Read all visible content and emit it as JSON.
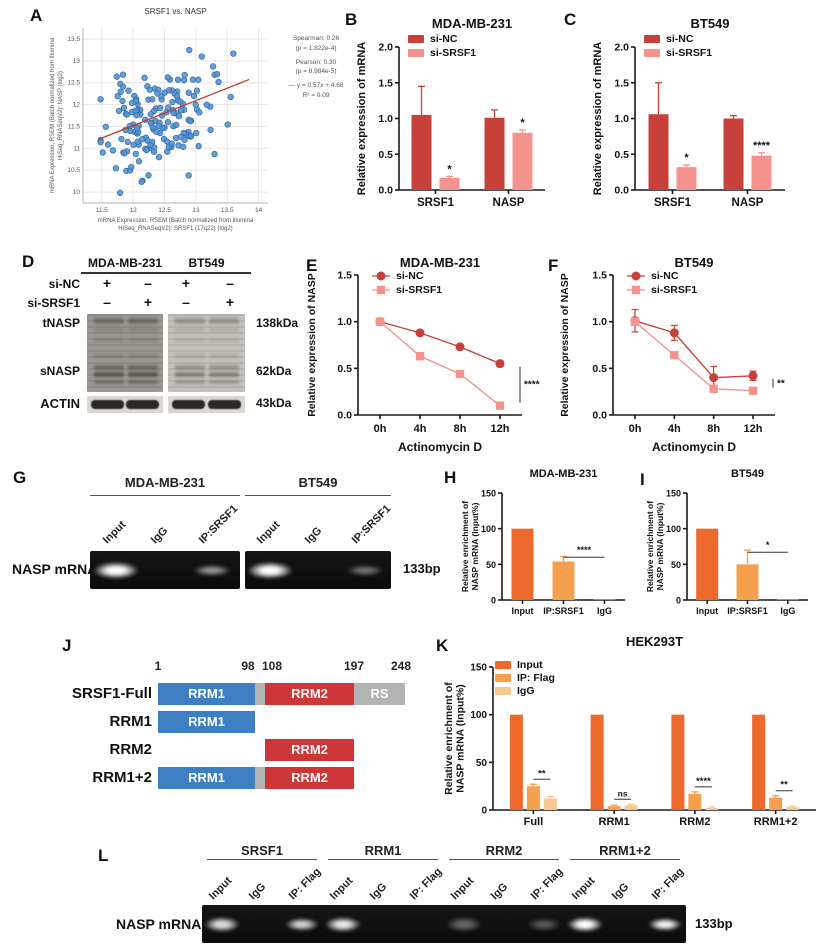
{
  "colors": {
    "si_nc": "#c8403a",
    "si_srsf1": "#f4938d",
    "input_orange": "#ee6a2c",
    "flag_orange": "#f5a04f",
    "igg_orange": "#f6c88f",
    "scatter_point": "#5593d2",
    "regression": "#c0392b",
    "domain_blue": "#3e7ec2",
    "domain_red": "#cc3636",
    "domain_gray": "#b3b3b3"
  },
  "panel_labels": {
    "A": "A",
    "B": "B",
    "C": "C",
    "D": "D",
    "E": "E",
    "F": "F",
    "G": "G",
    "H": "H",
    "I": "I",
    "J": "J",
    "K": "K",
    "L": "L"
  },
  "chart_data": [
    {
      "panel": "A",
      "type": "scatter",
      "title": "SRSF1 vs. NASP",
      "xlabel_lines": [
        "mRNA Expression, RSEM (Batch normalized from Illumina",
        "HiSeq_RNASeqV2): SRSF1 (17q22) (log2)"
      ],
      "ylabel_lines": [
        "mRNA Expression, RSEM (Batch normalized from Illumina",
        "HiSeq_RNASeqV2): NASP (log2)"
      ],
      "xlim": [
        11.2,
        14.15
      ],
      "ylim": [
        9.75,
        13.75
      ],
      "xticks": [
        11.5,
        12,
        12.5,
        13,
        13.5,
        14
      ],
      "xtick_labels": [
        "11.5",
        "12",
        "12.5",
        "13",
        "13.5",
        "14"
      ],
      "yticks": [
        10,
        10.5,
        11,
        11.5,
        12,
        12.5,
        13,
        13.5
      ],
      "ytick_labels": [
        "10",
        "10.5",
        "11",
        "11.5",
        "12",
        "12.5",
        "13",
        "13.5"
      ],
      "n_points": 165,
      "point_distribution": {
        "x_mean": 12.38,
        "x_sd": 0.42,
        "y_mean": 11.62,
        "y_sd": 0.6,
        "correlation": 0.3,
        "seed": 11
      },
      "regression": {
        "slope": 0.57,
        "intercept": 4.68,
        "x_range": [
          11.45,
          13.85
        ]
      },
      "stats_lines": [
        "Spearman: 0.26",
        "(p = 1.822e-4)",
        "Pearson: 0.30",
        "(p = 8.984e-5)",
        "—  y = 0.57x + 4.68",
        "R² = 0.09"
      ]
    },
    {
      "panel": "B",
      "type": "bar",
      "title": "MDA-MB-231",
      "ylabel": "Relative expression of mRNA",
      "ylim": [
        0,
        2.0
      ],
      "yticks": [
        0,
        0.5,
        1.0,
        1.5,
        2.0
      ],
      "ytick_labels": [
        "0.0",
        "0.5",
        "1.0",
        "1.5",
        "2.0"
      ],
      "categories": [
        "SRSF1",
        "NASP"
      ],
      "series": [
        {
          "name": "si-NC",
          "color": "#c8403a",
          "values": [
            1.05,
            1.01
          ],
          "errors": [
            0.4,
            0.11
          ]
        },
        {
          "name": "si-SRSF1",
          "color": "#f4938d",
          "values": [
            0.17,
            0.8
          ],
          "errors": [
            0.02,
            0.04
          ]
        }
      ],
      "sig_stars": [
        {
          "category": 0,
          "series": 1,
          "text": "*"
        },
        {
          "category": 1,
          "series": 1,
          "text": "*"
        }
      ]
    },
    {
      "panel": "C",
      "type": "bar",
      "title": "BT549",
      "ylabel": "Relative expression of mRNA",
      "ylim": [
        0,
        2.0
      ],
      "yticks": [
        0,
        0.5,
        1.0,
        1.5,
        2.0
      ],
      "ytick_labels": [
        "0.0",
        "0.5",
        "1.0",
        "1.5",
        "2.0"
      ],
      "categories": [
        "SRSF1",
        "NASP"
      ],
      "series": [
        {
          "name": "si-NC",
          "color": "#c8403a",
          "values": [
            1.06,
            1.0
          ],
          "errors": [
            0.44,
            0.04
          ]
        },
        {
          "name": "si-SRSF1",
          "color": "#f4938d",
          "values": [
            0.32,
            0.48
          ],
          "errors": [
            0.03,
            0.04
          ]
        }
      ],
      "sig_stars": [
        {
          "category": 0,
          "series": 1,
          "text": "*"
        },
        {
          "category": 1,
          "series": 1,
          "text": "****"
        }
      ]
    },
    {
      "panel": "E",
      "type": "line",
      "title": "MDA-MB-231",
      "ylabel": "Relative expression of NASP",
      "xlabel": "Actinomycin D",
      "x": [
        "0h",
        "4h",
        "8h",
        "12h"
      ],
      "ylim": [
        0,
        1.5
      ],
      "yticks": [
        0,
        0.5,
        1.0,
        1.5
      ],
      "ytick_labels": [
        "0.0",
        "0.5",
        "1.0",
        "1.5"
      ],
      "series": [
        {
          "name": "si-NC",
          "color": "#c8403a",
          "marker": "circle",
          "values": [
            1.0,
            0.88,
            0.73,
            0.55
          ],
          "errors": [
            0.03,
            0.02,
            0.02,
            0.03
          ]
        },
        {
          "name": "si-SRSF1",
          "color": "#f4938d",
          "marker": "square",
          "values": [
            1.0,
            0.63,
            0.44,
            0.1
          ],
          "errors": [
            0.02,
            0.02,
            0.02,
            0.02
          ]
        }
      ],
      "sig_bracket": {
        "text": "****"
      }
    },
    {
      "panel": "F",
      "type": "line",
      "title": "BT549",
      "ylabel": "Relative expression of NASP",
      "xlabel": "Actinomycin D",
      "x": [
        "0h",
        "4h",
        "8h",
        "12h"
      ],
      "ylim": [
        0,
        1.5
      ],
      "yticks": [
        0,
        0.5,
        1.0,
        1.5
      ],
      "ytick_labels": [
        "0.0",
        "0.5",
        "1.0",
        "1.5"
      ],
      "series": [
        {
          "name": "si-NC",
          "color": "#c8403a",
          "marker": "circle",
          "values": [
            1.01,
            0.88,
            0.4,
            0.42
          ],
          "errors": [
            0.12,
            0.08,
            0.12,
            0.05
          ]
        },
        {
          "name": "si-SRSF1",
          "color": "#f4938d",
          "marker": "square",
          "values": [
            1.0,
            0.64,
            0.28,
            0.26
          ],
          "errors": [
            0.03,
            0.03,
            0.02,
            0.03
          ]
        }
      ],
      "sig_bracket": {
        "text": "**"
      }
    },
    {
      "panel": "H",
      "type": "bar",
      "title": "MDA-MB-231",
      "ylabel": "Relative enrichment of\nNASP mRNA (Input%)",
      "ylim": [
        0,
        150
      ],
      "yticks": [
        0,
        50,
        100,
        150
      ],
      "ytick_labels": [
        "0",
        "50",
        "100",
        "150"
      ],
      "categories": [
        "Input",
        "IP:SRSF1",
        "IgG"
      ],
      "series": [
        {
          "name": "",
          "colors": [
            "#ee6a2c",
            "#f5a04f",
            "#f6c88f"
          ],
          "values": [
            100,
            54,
            0.5
          ],
          "errors": [
            0,
            7,
            0
          ]
        }
      ],
      "sig_line": {
        "from": 1,
        "to": 2,
        "value": 60,
        "text": "****"
      }
    },
    {
      "panel": "I",
      "type": "bar",
      "title": "BT549",
      "ylabel": "Relative enrichment of\nNASP mRNA (Input%)",
      "ylim": [
        0,
        150
      ],
      "yticks": [
        0,
        50,
        100,
        150
      ],
      "ytick_labels": [
        "0",
        "50",
        "100",
        "150"
      ],
      "categories": [
        "Input",
        "IP:SRSF1",
        "IgG"
      ],
      "series": [
        {
          "name": "",
          "colors": [
            "#ee6a2c",
            "#f5a04f",
            "#f6c88f"
          ],
          "values": [
            100,
            50,
            0.5
          ],
          "errors": [
            0,
            20,
            0
          ]
        }
      ],
      "sig_line": {
        "from": 1,
        "to": 2,
        "value": 67,
        "text": "*"
      }
    },
    {
      "panel": "K",
      "type": "bar",
      "title": "HEK293T",
      "ylabel": "Relative enrichment of\nNASP mRNA (Input%)",
      "ylim": [
        0,
        150
      ],
      "yticks": [
        0,
        50,
        100,
        150
      ],
      "ytick_labels": [
        "0",
        "50",
        "100",
        "150"
      ],
      "categories": [
        "Full",
        "RRM1",
        "RRM2",
        "RRM1+2"
      ],
      "series": [
        {
          "name": "Input",
          "color": "#ee6a2c",
          "values": [
            100,
            100,
            100,
            100
          ],
          "errors": [
            0,
            0,
            0,
            0
          ]
        },
        {
          "name": "IP: Flag",
          "color": "#f5a04f",
          "values": [
            25,
            4,
            17,
            13
          ],
          "errors": [
            2,
            1,
            2,
            2
          ]
        },
        {
          "name": "IgG",
          "color": "#f6c88f",
          "values": [
            12,
            5,
            2,
            3
          ],
          "errors": [
            2,
            1,
            1,
            1
          ]
        }
      ],
      "pair_sigs": [
        {
          "category": 0,
          "a": 1,
          "b": 2,
          "text": "**"
        },
        {
          "category": 1,
          "a": 1,
          "b": 2,
          "text": "ns"
        },
        {
          "category": 2,
          "a": 1,
          "b": 2,
          "text": "****"
        },
        {
          "category": 3,
          "a": 1,
          "b": 2,
          "text": "**"
        }
      ]
    }
  ],
  "panels": {
    "D": {
      "groups": [
        "MDA-MB-231",
        "BT549"
      ],
      "rows": [
        {
          "name": "si-NC",
          "values": [
            "+",
            "–",
            "+",
            "–"
          ]
        },
        {
          "name": "si-SRSF1",
          "values": [
            "–",
            "+",
            "–",
            "+"
          ]
        }
      ],
      "bands": [
        {
          "name": "tNASP",
          "kda": "138kDa"
        },
        {
          "name": "sNASP",
          "kda": "62kDa"
        },
        {
          "name": "ACTIN",
          "kda": "43kDa"
        }
      ]
    },
    "G": {
      "row_label": "NASP mRNA",
      "size_label": "133bp",
      "groups": [
        {
          "name": "MDA-MB-231",
          "lanes": [
            "Input",
            "IgG",
            "IP:SRSF1"
          ],
          "band_intensity": [
            1.0,
            0,
            0.55
          ]
        },
        {
          "name": "BT549",
          "lanes": [
            "Input",
            "IgG",
            "IP:SRSF1"
          ],
          "band_intensity": [
            1.0,
            0,
            0.4
          ]
        }
      ]
    },
    "J": {
      "total": 248,
      "scale_ticks": [
        {
          "pos": 1,
          "text": "1"
        },
        {
          "pos": 98,
          "text": "98"
        },
        {
          "pos": 108,
          "text": "108"
        },
        {
          "pos": 197,
          "text": "197"
        },
        {
          "pos": 248,
          "text": "248"
        }
      ],
      "rows": [
        {
          "name": "SRSF1-Full",
          "segments": [
            {
              "label": "RRM1",
              "start": 1,
              "end": 98,
              "color": "blue"
            },
            {
              "label": "",
              "start": 98,
              "end": 108,
              "color": "gray"
            },
            {
              "label": "RRM2",
              "start": 108,
              "end": 197,
              "color": "red"
            },
            {
              "label": "RS",
              "start": 197,
              "end": 248,
              "color": "gray"
            }
          ]
        },
        {
          "name": "RRM1",
          "segments": [
            {
              "label": "RRM1",
              "start": 1,
              "end": 98,
              "color": "blue"
            }
          ]
        },
        {
          "name": "RRM2",
          "segments": [
            {
              "label": "RRM2",
              "start": 108,
              "end": 197,
              "color": "red"
            }
          ]
        },
        {
          "name": "RRM1+2",
          "segments": [
            {
              "label": "RRM1",
              "start": 1,
              "end": 98,
              "color": "blue"
            },
            {
              "label": "",
              "start": 98,
              "end": 108,
              "color": "gray"
            },
            {
              "label": "RRM2",
              "start": 108,
              "end": 197,
              "color": "red"
            }
          ]
        }
      ]
    },
    "L": {
      "row_label": "NASP mRNA",
      "size_label": "133bp",
      "groups": [
        {
          "name": "SRSF1",
          "lanes": [
            "Input",
            "IgG",
            "IP: Flag"
          ],
          "band_intensity": [
            0.85,
            0,
            0.8
          ]
        },
        {
          "name": "RRM1",
          "lanes": [
            "Input",
            "IgG",
            "IP: Flag"
          ],
          "band_intensity": [
            0.9,
            0,
            0
          ]
        },
        {
          "name": "RRM2",
          "lanes": [
            "Input",
            "IgG",
            "IP: Flag"
          ],
          "band_intensity": [
            0.35,
            0,
            0.3
          ]
        },
        {
          "name": "RRM1+2",
          "lanes": [
            "Input",
            "IgG",
            "IP: Flag"
          ],
          "band_intensity": [
            1.0,
            0,
            0.95
          ]
        }
      ]
    }
  }
}
